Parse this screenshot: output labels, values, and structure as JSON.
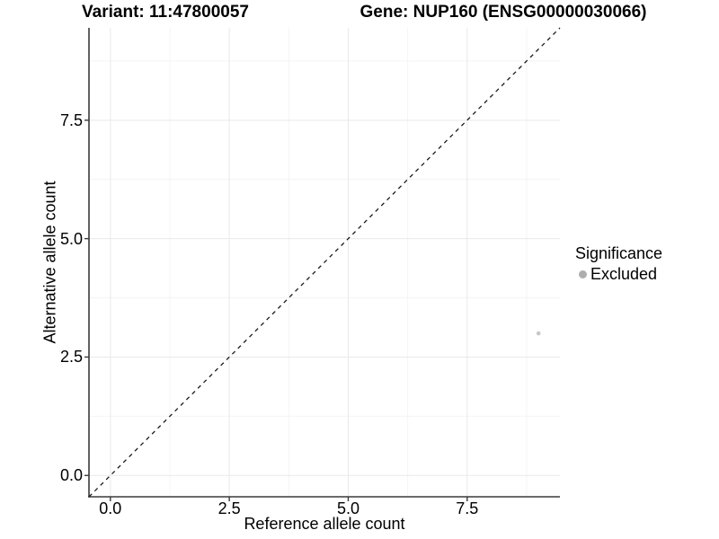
{
  "titles": {
    "variant": "Variant: 11:47800057",
    "gene": "Gene: NUP160 (ENSG00000030066)"
  },
  "chart_data": {
    "type": "scatter",
    "xlabel": "Reference allele count",
    "ylabel": "Alternative allele count",
    "xlim": [
      -0.45,
      9.45
    ],
    "ylim": [
      -0.45,
      9.45
    ],
    "x_ticks": [
      0,
      2.5,
      5,
      7.5
    ],
    "x_tick_labels": [
      "0.0",
      "2.5",
      "5.0",
      "7.5"
    ],
    "y_ticks": [
      0,
      2.5,
      5,
      7.5
    ],
    "y_tick_labels": [
      "0.0",
      "2.5",
      "5.0",
      "7.5"
    ],
    "x_minor_ticks": [
      1.25,
      3.75,
      6.25,
      8.75
    ],
    "y_minor_ticks": [
      1.25,
      3.75,
      6.25,
      8.75
    ],
    "grid": true,
    "points": [
      {
        "x": 9,
        "y": 3,
        "series": "Excluded"
      }
    ],
    "reference_line": {
      "type": "identity",
      "style": "dashed",
      "from": [
        -0.45,
        -0.45
      ],
      "to": [
        9.45,
        9.45
      ]
    },
    "legend": {
      "title": "Significance",
      "position": "right",
      "items": [
        {
          "label": "Excluded",
          "color": "#aeaeae"
        }
      ]
    },
    "colors": {
      "point": "#c7c7c7",
      "grid_major": "#e9e9e9",
      "grid_minor": "#f4f4f4",
      "axis": "#3a3a3a",
      "diagonal": "#1a1a1a"
    }
  }
}
